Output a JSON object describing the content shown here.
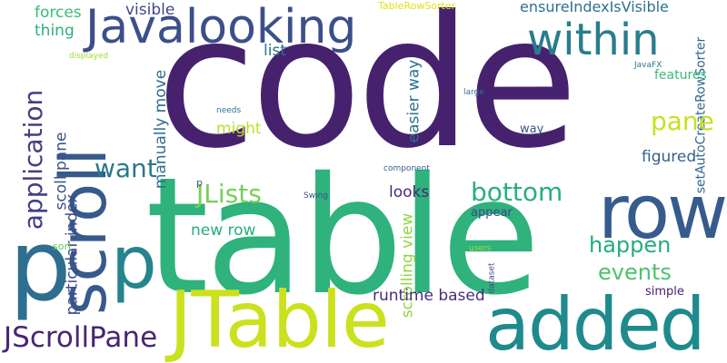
{
  "words": {
    "code": {
      "text": "code",
      "color": "#46226e"
    },
    "table": {
      "text": "table",
      "color": "#2fb27c"
    },
    "jtable": {
      "text": "JTable",
      "color": "#cbe11e"
    },
    "added": {
      "text": "added",
      "color": "#1f8a8c"
    },
    "row": {
      "text": "row",
      "color": "#365c8d"
    },
    "scroll": {
      "text": "scroll",
      "color": "#375a8c"
    },
    "p_big": {
      "text": "p",
      "color": "#2e6e8e"
    },
    "p_mid": {
      "text": "p",
      "color": "#25848e"
    },
    "javalooking": {
      "text": "Javalooking",
      "color": "#3c4f8a"
    },
    "within": {
      "text": "within",
      "color": "#287d8e"
    },
    "jscrollpane": {
      "text": "JScrollPane",
      "color": "#482575"
    },
    "application": {
      "text": "application",
      "color": "#433e85"
    },
    "jlists": {
      "text": "JLists",
      "color": "#75d054"
    },
    "want": {
      "text": "want",
      "color": "#2a788e"
    },
    "bottom": {
      "text": "bottom",
      "color": "#29af7f"
    },
    "happen": {
      "text": "happen",
      "color": "#25ab82"
    },
    "events": {
      "text": "events",
      "color": "#4ec36b"
    },
    "pane": {
      "text": "pane",
      "color": "#c8e020"
    },
    "ensureindexisvisible": {
      "text": "ensureIndexIsVisible",
      "color": "#2d718e"
    },
    "forces": {
      "text": "forces",
      "color": "#3bbb75"
    },
    "visible": {
      "text": "visible",
      "color": "#3f4788"
    },
    "thing": {
      "text": "thing",
      "color": "#2db27d"
    },
    "tablerowsorter": {
      "text": "TableRowSorter",
      "color": "#dde318"
    },
    "list": {
      "text": "list",
      "color": "#2c738e"
    },
    "might": {
      "text": "might",
      "color": "#bddf26"
    },
    "easier_way": {
      "text": "easier way",
      "color": "#2c718e"
    },
    "figured": {
      "text": "figured",
      "color": "#34608d"
    },
    "features": {
      "text": "features",
      "color": "#3bbb75"
    },
    "setautocreaterowsorter": {
      "text": "setAutoCreateRowSorter",
      "color": "#31688e"
    },
    "manually_move": {
      "text": "manually move",
      "color": "#2f6c8e"
    },
    "scoll_pane": {
      "text": "scoll pane",
      "color": "#3b528b"
    },
    "particular_index": {
      "text": "particular index",
      "color": "#3e4a89"
    },
    "new_row": {
      "text": "new row",
      "color": "#27ad81"
    },
    "looks": {
      "text": "looks",
      "color": "#482979"
    },
    "scrolling_view": {
      "text": "scrolling view",
      "color": "#90d743"
    },
    "runtime_based": {
      "text": "runtime based",
      "color": "#472d7b"
    },
    "simple": {
      "text": "simple",
      "color": "#481a6c"
    },
    "appear": {
      "text": "appear",
      "color": "#3e4989"
    },
    "way_small": {
      "text": "way",
      "color": "#3b528b"
    },
    "sort": {
      "text": "sort",
      "color": "#5ec962"
    },
    "javafx": {
      "text": "JavaFX",
      "color": "#2a788e"
    },
    "large": {
      "text": "large",
      "color": "#2c728e"
    },
    "needs": {
      "text": "needs",
      "color": "#2a768e"
    },
    "component": {
      "text": "component",
      "color": "#34618d"
    },
    "swing": {
      "text": "Swing",
      "color": "#3e4c8a"
    },
    "users": {
      "text": "users",
      "color": "#9fda3a"
    },
    "dataset": {
      "text": "dataset",
      "color": "#3e4c8a"
    },
    "displayed": {
      "text": "displayed",
      "color": "#a2da37"
    },
    "p_small": {
      "text": "p",
      "color": "#3b528b"
    }
  }
}
